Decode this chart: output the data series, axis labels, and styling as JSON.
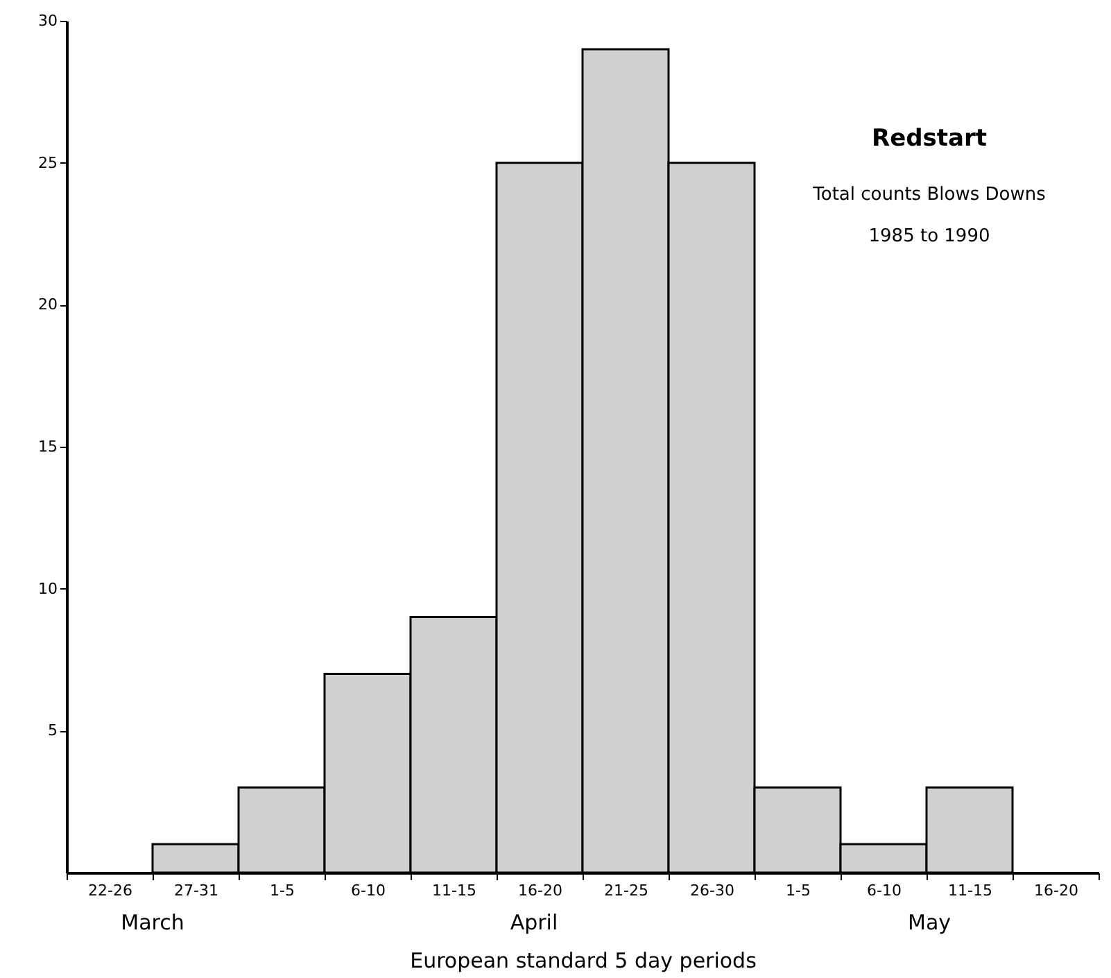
{
  "chart_data": {
    "type": "bar",
    "title": "Redstart",
    "annotations": [
      "Total counts Blows Downs",
      "1985 to 1990",
      "March",
      "April",
      "May"
    ],
    "xlabel": "European standard 5 day periods",
    "categories": [
      "22-26",
      "27-31",
      "1-5",
      "6-10",
      "11-15",
      "16-20",
      "21-25",
      "26-30",
      "1-5",
      "6-10",
      "11-15",
      "16-20"
    ],
    "values": [
      0,
      1,
      3,
      7,
      9,
      25,
      29,
      25,
      3,
      1,
      3,
      0
    ],
    "color": "#d0d0d0",
    "ylim": [
      0,
      30
    ],
    "yticks": [
      5,
      10,
      15,
      20,
      25,
      30
    ],
    "grid": false
  }
}
